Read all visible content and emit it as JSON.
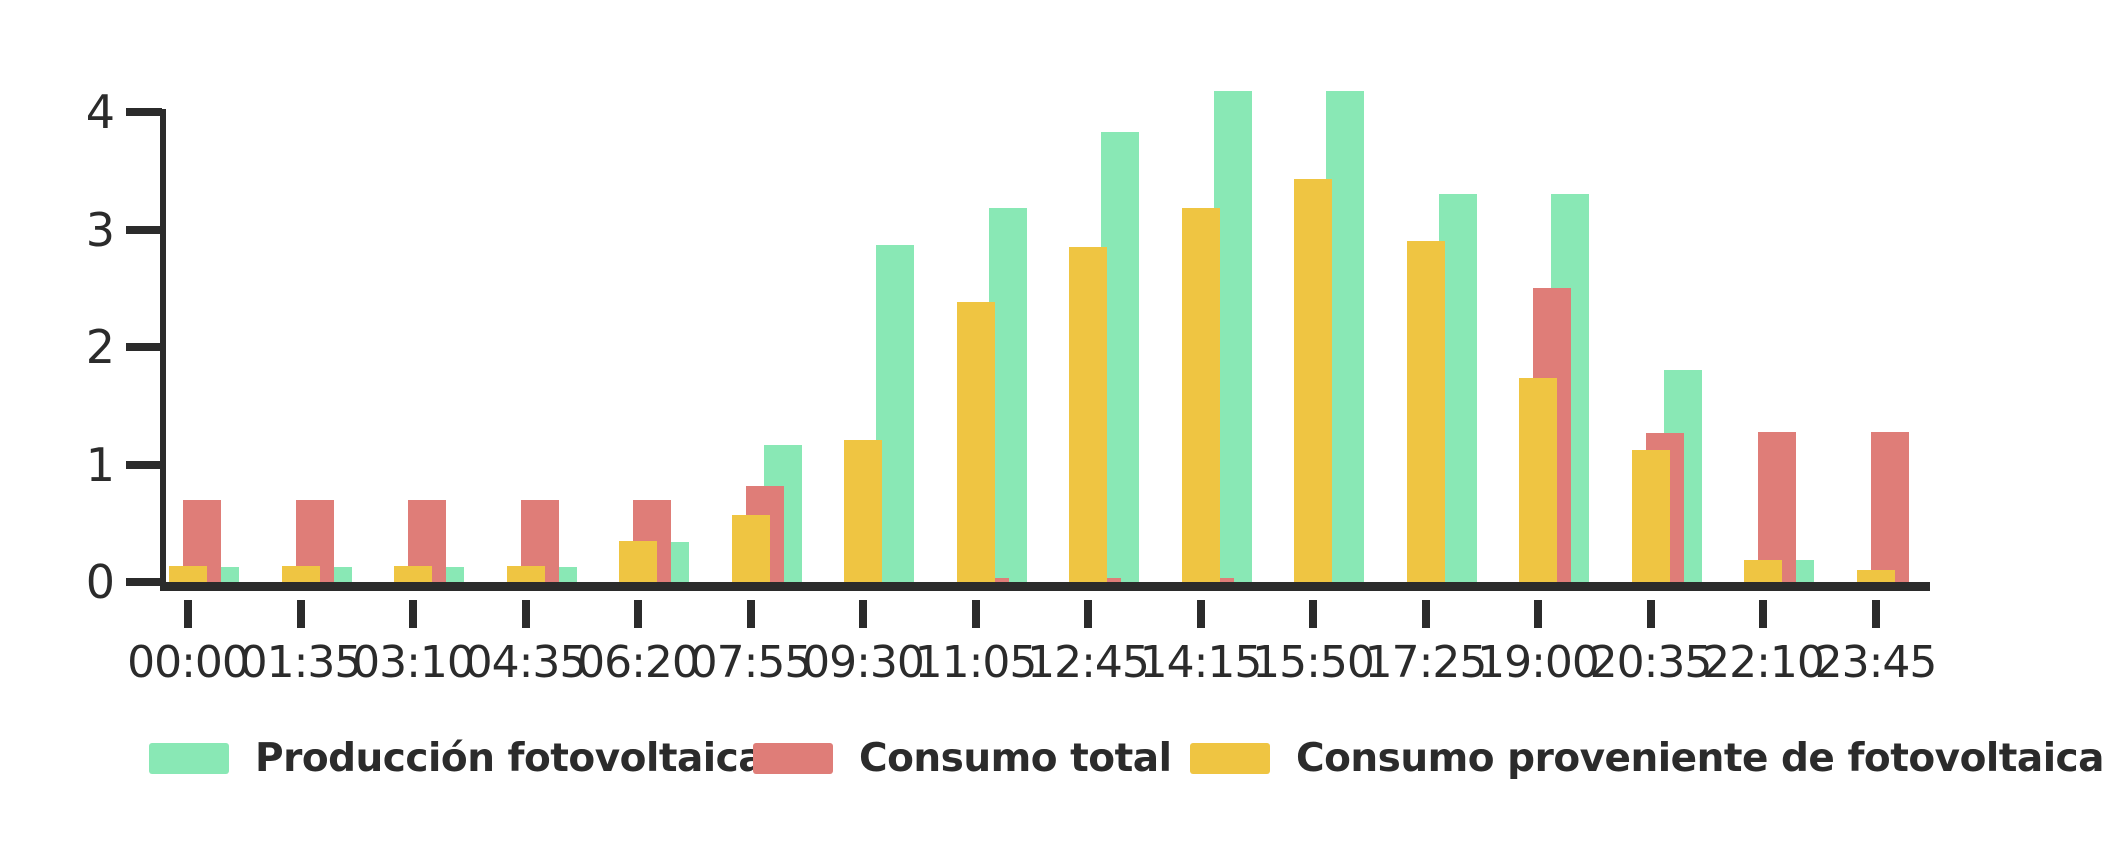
{
  "chart_data": {
    "type": "bar",
    "title": "",
    "categories": [
      "00:00",
      "01:35",
      "03:10",
      "04:35",
      "06:20",
      "07:55",
      "09:30",
      "11:05",
      "12:45",
      "14:15",
      "15:50",
      "17:25",
      "19:00",
      "20:35",
      "22:10",
      "23:45"
    ],
    "series": [
      {
        "name": "Producción fotovoltaica",
        "color": "#89e8b5",
        "values": [
          0.13,
          0.13,
          0.13,
          0.13,
          0.34,
          1.17,
          2.87,
          3.18,
          3.83,
          4.18,
          4.18,
          3.3,
          3.3,
          1.8,
          0.19,
          0
        ]
      },
      {
        "name": "Consumo total",
        "color": "#df7d78",
        "values": [
          0.7,
          0.7,
          0.7,
          0.7,
          0.7,
          0.82,
          0,
          0.03,
          0.03,
          0.03,
          0,
          0,
          2.5,
          1.27,
          1.28,
          1.28
        ]
      },
      {
        "name": "Consumo proveniente de fotovoltaica",
        "color": "#efc542",
        "values": [
          0.14,
          0.14,
          0.14,
          0.14,
          0.35,
          0.57,
          1.21,
          2.38,
          2.85,
          3.18,
          3.43,
          2.9,
          1.74,
          1.12,
          0.19,
          0.1
        ]
      }
    ],
    "xlabel": "",
    "ylabel": "",
    "y_ticks": [
      "0",
      "1",
      "2",
      "3",
      "4"
    ],
    "ylim": [
      0,
      4
    ],
    "grid": false,
    "legend_position": "bottom"
  },
  "legend": {
    "items": [
      {
        "label": "Producción fotovoltaica",
        "color": "#89e8b5"
      },
      {
        "label": "Consumo total",
        "color": "#df7d78"
      },
      {
        "label": "Consumo proveniente de fotovoltaica",
        "color": "#efc542"
      }
    ]
  },
  "colors": {
    "production_green": "#89e8b5",
    "consumption_red": "#df7d78",
    "from_pv_yellow": "#efc542",
    "axis_dark": "#2b2b2b",
    "background": "#ffffff"
  }
}
